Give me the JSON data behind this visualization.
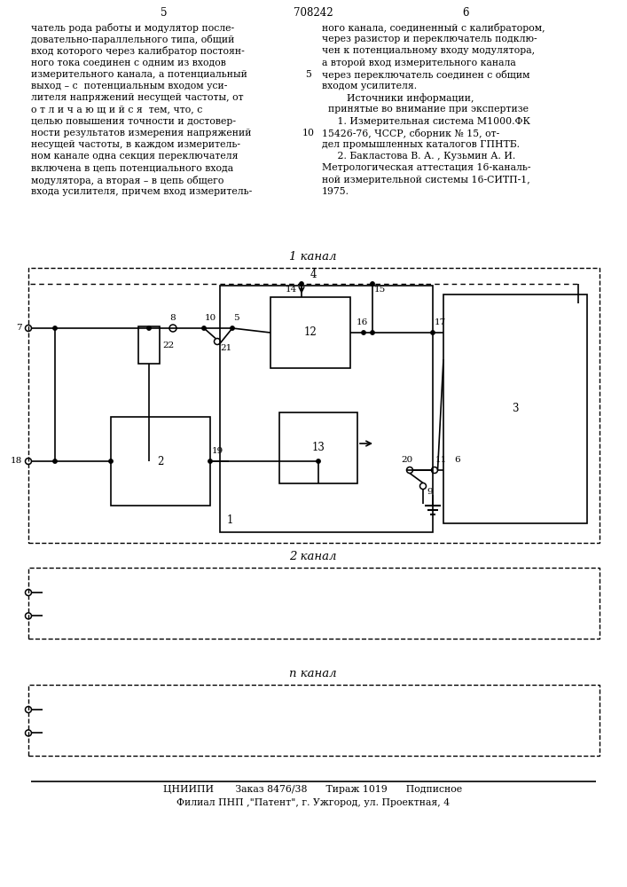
{
  "page_num_left": "5",
  "page_num_center": "708242",
  "page_num_right": "6",
  "text_left_lines": [
    "чатель рода работы и модулятор после-",
    "довательно-параллельного типа, общий",
    "вход которого через калибратор постоян-",
    "ного тока соединен с одним из входов",
    "измерительного канала, а потенциальный",
    "выход – с  потенциальным входом уси-",
    "лителя напряжений несущей частоты, от",
    "о т л и ч а ю щ и й с я  тем, что, с",
    "целью повышения точности и достовер-",
    "ности результатов измерения напряжений",
    "несущей частоты, в каждом измеритель-",
    "ном канале одна секция переключателя",
    "включена в цепь потенциального входа",
    "модулятора, а вторая – в цепь общего",
    "входа усилителя, причем вход измеритель-"
  ],
  "text_right_lines": [
    "ного канала, соединенный с калибратором,",
    "через разистор и переключатель подклю-",
    "чен к потенциальному входу модулятора,",
    "а второй вход измерительного канала",
    "через переключатель соединен с общим",
    "входом усилителя.",
    "        Источники информации,",
    "  принятые во внимание при экспертизе",
    "     1. Измерительная система М1000.ФК",
    "15426-76, ЧССР, сборник № 15, от-",
    "дел промышленных каталогов ГПНТБ.",
    "     2. Бакластова В. А. , Кузьмин А. И.",
    "Метрологическая аттестация 16-каналь-",
    "ной измерительной системы 16-СИТП-1,",
    "1975."
  ],
  "line_num_5_row": 4,
  "line_num_10_row": 9,
  "channel1_label": "1 канал",
  "channel2_label": "2 канал",
  "channeln_label": "n канал",
  "footer1": "ЦНИИПИ       Заказ 8476/38      Тираж 1019      Подписное",
  "footer2": "Филиал ПНП ,\"Патент\", г. Ужгород, ул. Проектная, 4"
}
